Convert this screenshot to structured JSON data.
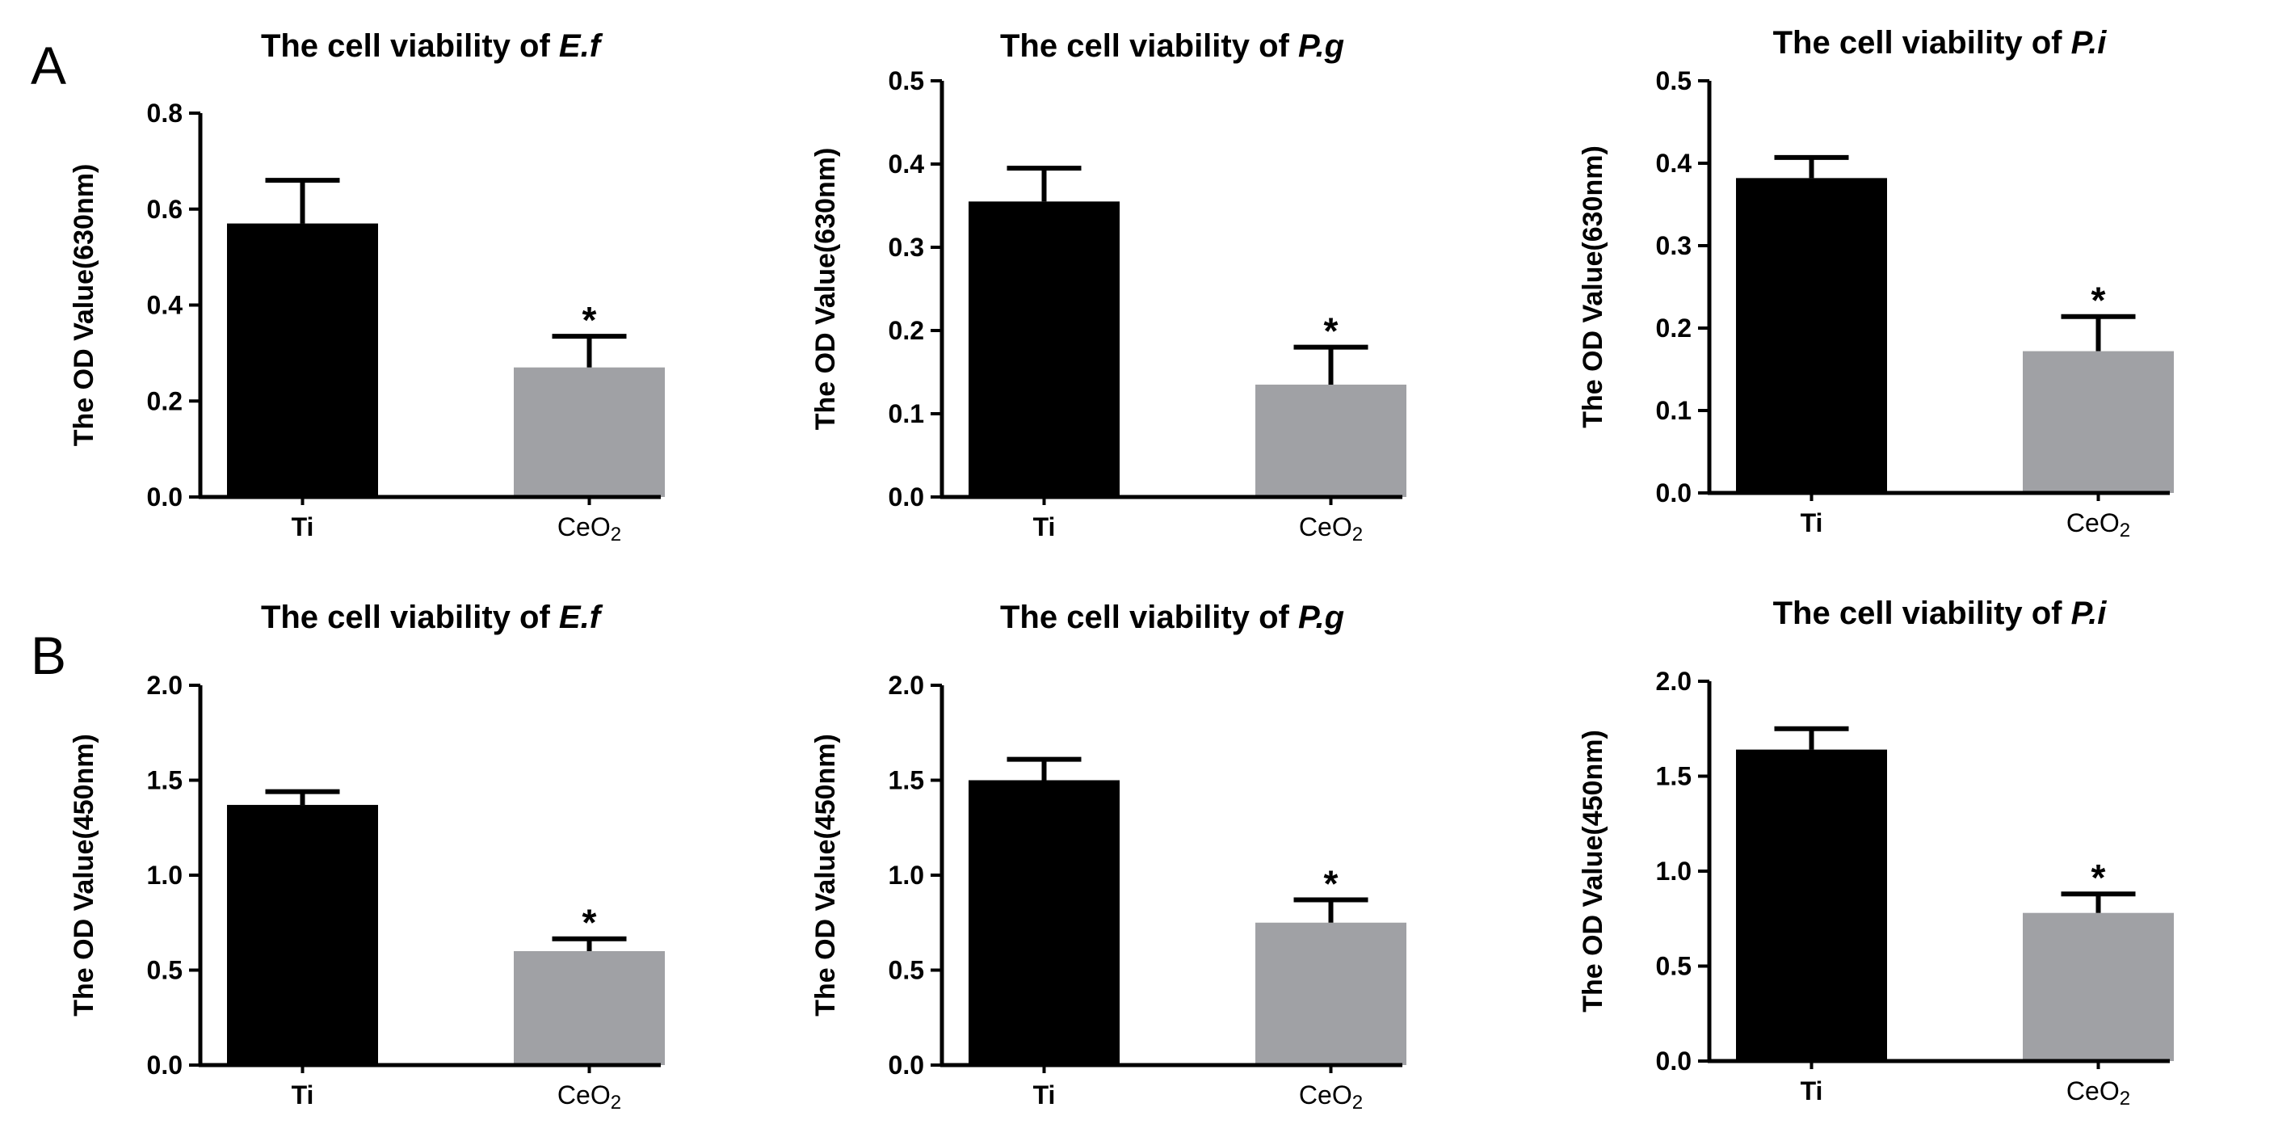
{
  "panels": [
    {
      "letter": "A"
    },
    {
      "letter": "B"
    }
  ],
  "colors": {
    "ti": "#000000",
    "ceo2": "#a0a1a5",
    "axis": "#000000"
  },
  "chart_data": [
    {
      "type": "bar",
      "panel": "A",
      "title": {
        "prefix": "The cell viability of ",
        "italic": "E.f"
      },
      "ylabel": "The OD Value(630nm)",
      "categories": [
        {
          "main": "Ti",
          "sub": ""
        },
        {
          "main": "CeO",
          "sub": "2"
        }
      ],
      "values": [
        0.57,
        0.27
      ],
      "errors": [
        0.09,
        0.065
      ],
      "significance": [
        "",
        "*"
      ],
      "ylim": [
        0,
        0.8
      ],
      "yticks": [
        0.0,
        0.2,
        0.4,
        0.6,
        0.8
      ],
      "ytick_labels": [
        "0.0",
        "0.2",
        "0.4",
        "0.6",
        "0.8"
      ]
    },
    {
      "type": "bar",
      "panel": "A",
      "title": {
        "prefix": "The cell viability of ",
        "italic": "P.g"
      },
      "ylabel": "The OD Value(630nm)",
      "categories": [
        {
          "main": "Ti",
          "sub": ""
        },
        {
          "main": "CeO",
          "sub": "2"
        }
      ],
      "values": [
        0.355,
        0.135
      ],
      "errors": [
        0.04,
        0.045
      ],
      "significance": [
        "",
        "*"
      ],
      "ylim": [
        0,
        0.5
      ],
      "yticks": [
        0.0,
        0.1,
        0.2,
        0.3,
        0.4,
        0.5
      ],
      "ytick_labels": [
        "0.0",
        "0.1",
        "0.2",
        "0.3",
        "0.4",
        "0.5"
      ]
    },
    {
      "type": "bar",
      "panel": "A",
      "title": {
        "prefix": "The cell viability of ",
        "italic": "P.i"
      },
      "ylabel": "The OD Value(630nm)",
      "categories": [
        {
          "main": "Ti",
          "sub": ""
        },
        {
          "main": "CeO",
          "sub": "2"
        }
      ],
      "values": [
        0.382,
        0.172
      ],
      "errors": [
        0.025,
        0.042
      ],
      "significance": [
        "",
        "*"
      ],
      "ylim": [
        0,
        0.5
      ],
      "yticks": [
        0.0,
        0.1,
        0.2,
        0.3,
        0.4,
        0.5
      ],
      "ytick_labels": [
        "0.0",
        "0.1",
        "0.2",
        "0.3",
        "0.4",
        "0.5"
      ]
    },
    {
      "type": "bar",
      "panel": "B",
      "title": {
        "prefix": "The cell viability of ",
        "italic": "E.f"
      },
      "ylabel": "The OD Value(450nm)",
      "categories": [
        {
          "main": "Ti",
          "sub": ""
        },
        {
          "main": "CeO",
          "sub": "2"
        }
      ],
      "values": [
        1.37,
        0.6
      ],
      "errors": [
        0.07,
        0.065
      ],
      "significance": [
        "",
        "*"
      ],
      "ylim": [
        0,
        2.0
      ],
      "yticks": [
        0.0,
        0.5,
        1.0,
        1.5,
        2.0
      ],
      "ytick_labels": [
        "0.0",
        "0.5",
        "1.0",
        "1.5",
        "2.0"
      ]
    },
    {
      "type": "bar",
      "panel": "B",
      "title": {
        "prefix": "The cell viability of ",
        "italic": "P.g"
      },
      "ylabel": "The OD Value(450nm)",
      "categories": [
        {
          "main": "Ti",
          "sub": ""
        },
        {
          "main": "CeO",
          "sub": "2"
        }
      ],
      "values": [
        1.5,
        0.75
      ],
      "errors": [
        0.11,
        0.12
      ],
      "significance": [
        "",
        "*"
      ],
      "ylim": [
        0,
        2.0
      ],
      "yticks": [
        0.0,
        0.5,
        1.0,
        1.5,
        2.0
      ],
      "ytick_labels": [
        "0.0",
        "0.5",
        "1.0",
        "1.5",
        "2.0"
      ]
    },
    {
      "type": "bar",
      "panel": "B",
      "title": {
        "prefix": "The cell viability of ",
        "italic": "P.i"
      },
      "ylabel": "The OD Value(450nm)",
      "categories": [
        {
          "main": "Ti",
          "sub": ""
        },
        {
          "main": "CeO",
          "sub": "2"
        }
      ],
      "values": [
        1.64,
        0.78
      ],
      "errors": [
        0.11,
        0.1
      ],
      "significance": [
        "",
        "*"
      ],
      "ylim": [
        0,
        2.0
      ],
      "yticks": [
        0.0,
        0.5,
        1.0,
        1.5,
        2.0
      ],
      "ytick_labels": [
        "0.0",
        "0.5",
        "1.0",
        "1.5",
        "2.0"
      ]
    }
  ]
}
